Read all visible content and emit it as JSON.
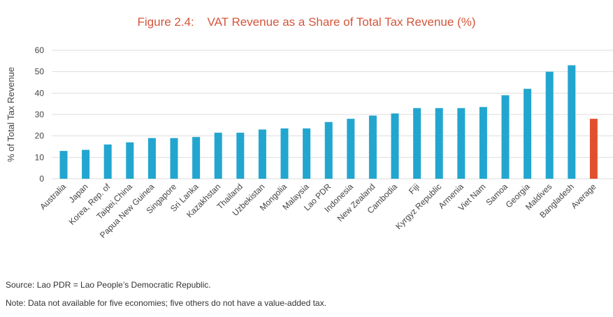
{
  "figure_label": "Figure 2.4:",
  "colors": {
    "bar": "#22a6cf",
    "highlight": "#e0502f",
    "title": "#d4553a",
    "grid": "#dddddd"
  },
  "chart_data": {
    "type": "bar",
    "title": "VAT Revenue as a Share of Total Tax Revenue (%)",
    "xlabel": "",
    "ylabel": "% of Total Tax Revenue",
    "ylim": [
      0,
      60
    ],
    "yticks": [
      0,
      10,
      20,
      30,
      40,
      50,
      60
    ],
    "grid": true,
    "categories": [
      "Australia",
      "Japan",
      "Korea, Rep. of",
      "Taipei,China",
      "Papua New Guinea",
      "Singapore",
      "Sri Lanka",
      "Kazakhstan",
      "Thailand",
      "Uzbekistan",
      "Mongolia",
      "Malaysia",
      "Lao PDR",
      "Indonesia",
      "New Zealand",
      "Cambodia",
      "Fiji",
      "Kyrgyz Republic",
      "Armenia",
      "Viet Nam",
      "Samoa",
      "Georgia",
      "Maldives",
      "Bangladesh",
      "Average"
    ],
    "values": [
      13,
      13.5,
      16,
      17,
      19,
      19,
      19.5,
      21.5,
      21.5,
      23,
      23.5,
      23.5,
      26.5,
      28,
      29.5,
      30.5,
      33,
      33,
      33,
      33.5,
      39,
      42,
      50,
      53,
      28
    ],
    "highlight_category": "Average"
  },
  "notes": {
    "source": "Source: Lao PDR = Lao People’s Democratic Republic.",
    "note": "Note: Data not available for five economies; five others do not have a value-added tax."
  }
}
